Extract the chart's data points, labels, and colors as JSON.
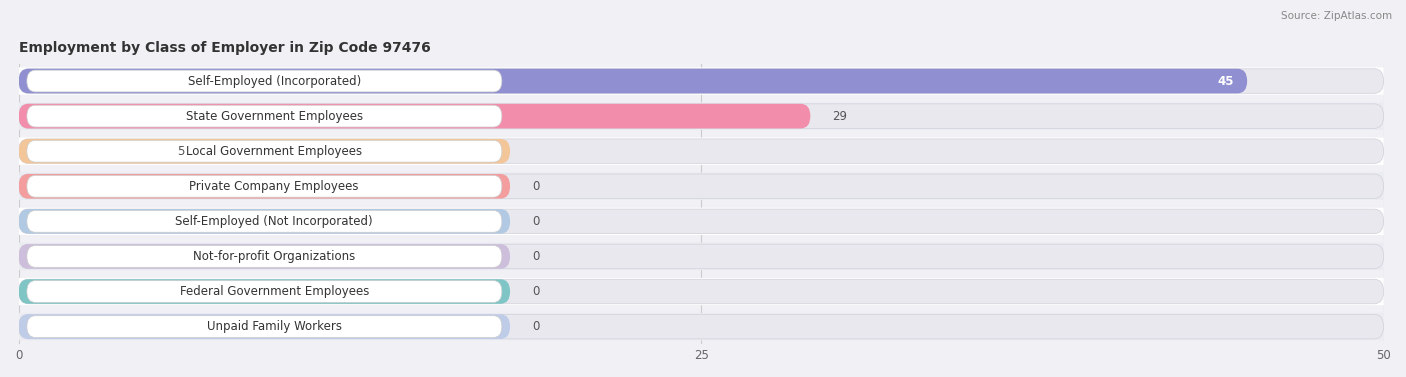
{
  "title": "Employment by Class of Employer in Zip Code 97476",
  "source": "Source: ZipAtlas.com",
  "categories": [
    "Self-Employed (Incorporated)",
    "State Government Employees",
    "Local Government Employees",
    "Private Company Employees",
    "Self-Employed (Not Incorporated)",
    "Not-for-profit Organizations",
    "Federal Government Employees",
    "Unpaid Family Workers"
  ],
  "values": [
    45,
    29,
    5,
    0,
    0,
    0,
    0,
    0
  ],
  "bar_colors": [
    "#8080cc",
    "#f47fa0",
    "#f5c08a",
    "#f59090",
    "#a8c4e0",
    "#c9b8d8",
    "#6dbfbf",
    "#b8c8e8"
  ],
  "xlim_max": 50,
  "xticks": [
    0,
    25,
    50
  ],
  "bg_color": "#f0f0f5",
  "row_colors": [
    "#ffffff",
    "#ebebf2"
  ],
  "title_fontsize": 10,
  "label_fontsize": 8.5,
  "value_fontsize": 8.5
}
